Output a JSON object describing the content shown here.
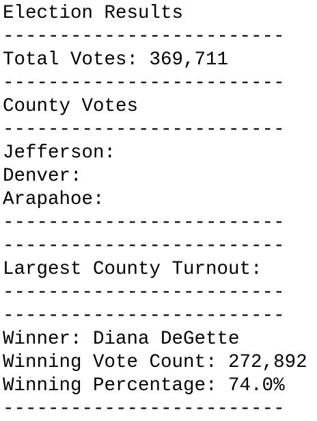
{
  "lines": [
    "Election Results",
    "-------------------------",
    "Total Votes: 369,711",
    "-------------------------",
    "County Votes",
    "-------------------------",
    "Jefferson:",
    "Denver:",
    "Arapahoe:",
    "-------------------------",
    "-------------------------",
    "Largest County Turnout:",
    "-------------------------",
    "-------------------------",
    "Winner: Diana DeGette",
    "Winning Vote Count: 272,892",
    "Winning Percentage: 74.0%",
    "-------------------------"
  ]
}
